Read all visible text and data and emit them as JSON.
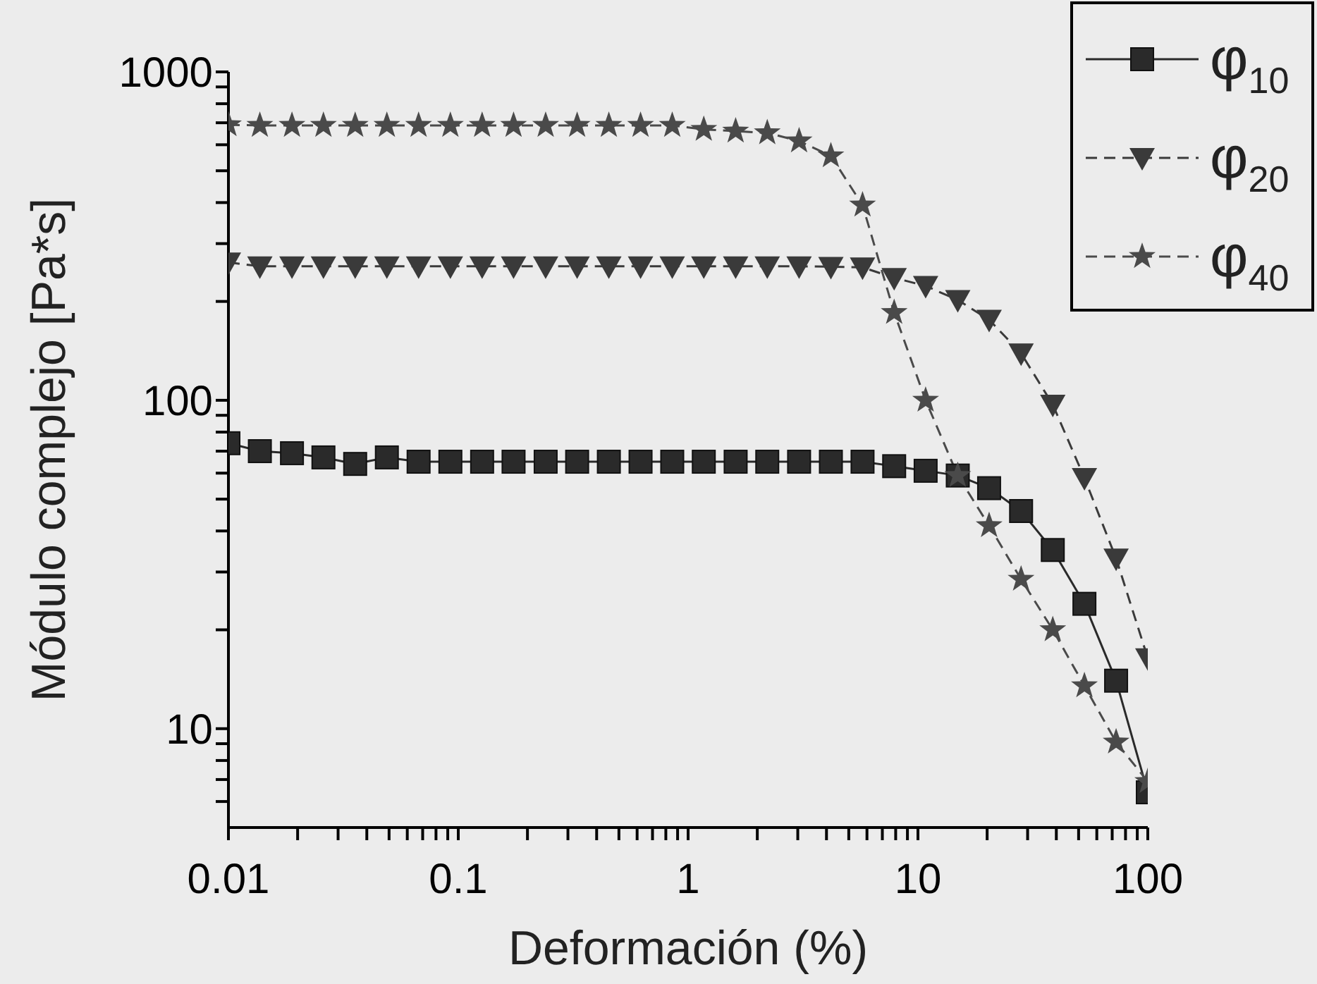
{
  "chart_data": {
    "type": "line",
    "xlabel": "Deformación (%)",
    "ylabel": "Módulo complejo [Pa*s]",
    "log": "xy",
    "grid": false,
    "legend": "top right",
    "xlim": [
      0.01,
      100
    ],
    "ylim": [
      5,
      1000
    ],
    "xticks": [
      0.01,
      {
        "value": 0.02,
        "label": null
      },
      {
        "value": 0.03,
        "label": null
      },
      {
        "value": 0.04,
        "label": null
      },
      {
        "value": 0.05,
        "label": null
      },
      {
        "value": 0.06,
        "label": null
      },
      {
        "value": 0.07,
        "label": null
      },
      {
        "value": 0.08,
        "label": null
      },
      {
        "value": 0.09,
        "label": null
      },
      0.1,
      {
        "value": 0.2,
        "label": null
      },
      {
        "value": 0.3,
        "label": null
      },
      {
        "value": 0.4,
        "label": null
      },
      {
        "value": 0.5,
        "label": null
      },
      {
        "value": 0.6,
        "label": null
      },
      {
        "value": 0.7,
        "label": null
      },
      {
        "value": 0.8,
        "label": null
      },
      {
        "value": 0.9,
        "label": null
      },
      1,
      {
        "value": 2,
        "label": null
      },
      {
        "value": 3,
        "label": null
      },
      {
        "value": 4,
        "label": null
      },
      {
        "value": 5,
        "label": null
      },
      {
        "value": 6,
        "label": null
      },
      {
        "value": 7,
        "label": null
      },
      {
        "value": 8,
        "label": null
      },
      {
        "value": 9,
        "label": null
      },
      10,
      {
        "value": 20,
        "label": null
      },
      {
        "value": 30,
        "label": null
      },
      {
        "value": 40,
        "label": null
      },
      {
        "value": 50,
        "label": null
      },
      {
        "value": 60,
        "label": null
      },
      {
        "value": 70,
        "label": null
      },
      {
        "value": 80,
        "label": null
      },
      {
        "value": 90,
        "label": null
      },
      100
    ],
    "yticks": [
      {
        "value": 6,
        "label": null
      },
      {
        "value": 7,
        "label": null
      },
      {
        "value": 8,
        "label": null
      },
      {
        "value": 9,
        "label": null
      },
      10,
      {
        "value": 20,
        "label": null
      },
      {
        "value": 30,
        "label": null
      },
      {
        "value": 40,
        "label": null
      },
      {
        "value": 50,
        "label": null
      },
      {
        "value": 60,
        "label": null
      },
      {
        "value": 70,
        "label": null
      },
      {
        "value": 80,
        "label": null
      },
      {
        "value": 90,
        "label": null
      },
      100,
      {
        "value": 200,
        "label": null
      },
      {
        "value": 300,
        "label": null
      },
      {
        "value": 400,
        "label": null
      },
      {
        "value": 500,
        "label": null
      },
      {
        "value": 600,
        "label": null
      },
      {
        "value": 700,
        "label": null
      },
      {
        "value": 800,
        "label": null
      },
      {
        "value": 900,
        "label": null
      },
      1000
    ],
    "x": [
      0.01,
      0.0137,
      0.0189,
      0.0259,
      0.0356,
      0.0489,
      0.0672,
      0.0924,
      0.127,
      0.174,
      0.24,
      0.329,
      0.452,
      0.621,
      0.853,
      1.17,
      1.61,
      2.21,
      3.04,
      4.18,
      5.74,
      7.88,
      10.8,
      14.9,
      20.4,
      28.1,
      38.6,
      53,
      72.8,
      100
    ],
    "series": [
      {
        "name": "φ$_{10}$",
        "color": "#2a2a2a",
        "marker": "square",
        "line_style": "solid",
        "values": [
          74,
          70,
          69,
          67,
          64,
          67,
          65,
          65,
          65,
          65,
          65,
          65,
          65,
          65,
          65,
          65,
          65,
          65,
          65,
          65,
          65,
          63,
          61,
          59,
          54,
          46,
          35,
          24,
          14,
          6.4
        ]
      },
      {
        "name": "φ$_{20}$",
        "color": "#3a3a3a",
        "marker": "triangle",
        "line_style": "dashed",
        "values": [
          263,
          256,
          256,
          256,
          256,
          256,
          256,
          256,
          256,
          256,
          256,
          256,
          256,
          256,
          256,
          256,
          256,
          256,
          256,
          255,
          254,
          236,
          223,
          202,
          176,
          139,
          97,
          58,
          33,
          16.4
        ]
      },
      {
        "name": "φ$_{40}$",
        "color": "#4a4a4a",
        "marker": "star",
        "line_style": "dashed",
        "values": [
          690,
          687,
          687,
          687,
          687,
          687,
          687,
          687,
          687,
          687,
          687,
          687,
          687,
          687,
          687,
          668,
          660,
          652,
          616,
          555,
          393,
          185,
          100,
          59,
          41.5,
          28.5,
          20,
          13.5,
          9.1,
          6.9
        ]
      }
    ]
  }
}
